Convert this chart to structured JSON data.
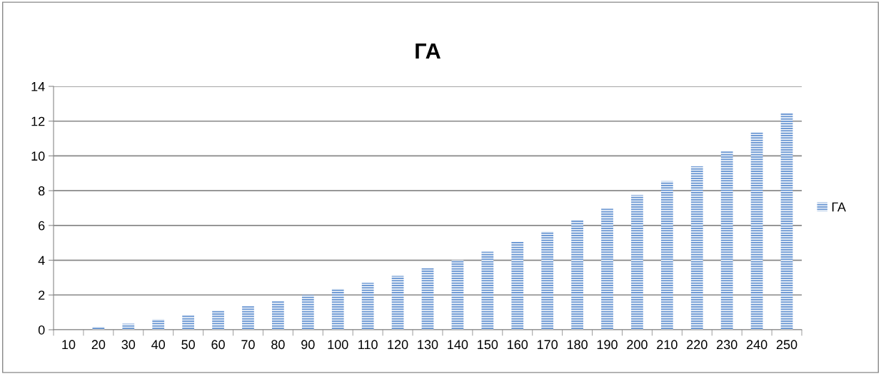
{
  "chart_data": {
    "type": "bar",
    "title": "ГА",
    "categories": [
      "10",
      "20",
      "30",
      "40",
      "50",
      "60",
      "70",
      "80",
      "90",
      "100",
      "110",
      "120",
      "130",
      "140",
      "150",
      "160",
      "170",
      "180",
      "190",
      "200",
      "210",
      "220",
      "230",
      "240",
      "250"
    ],
    "series": [
      {
        "name": "ГА",
        "color": "#6f9ad4",
        "values": [
          0,
          0.17,
          0.35,
          0.59,
          0.84,
          1.1,
          1.35,
          1.65,
          2.0,
          2.35,
          2.7,
          3.1,
          3.55,
          4.0,
          4.5,
          5.05,
          5.65,
          6.3,
          6.97,
          7.75,
          8.55,
          9.4,
          10.3,
          11.35,
          12.45
        ]
      }
    ],
    "ylim": [
      0,
      14
    ],
    "yticks": [
      0,
      2,
      4,
      6,
      8,
      10,
      12,
      14
    ],
    "grid": "y",
    "legend": "right"
  }
}
